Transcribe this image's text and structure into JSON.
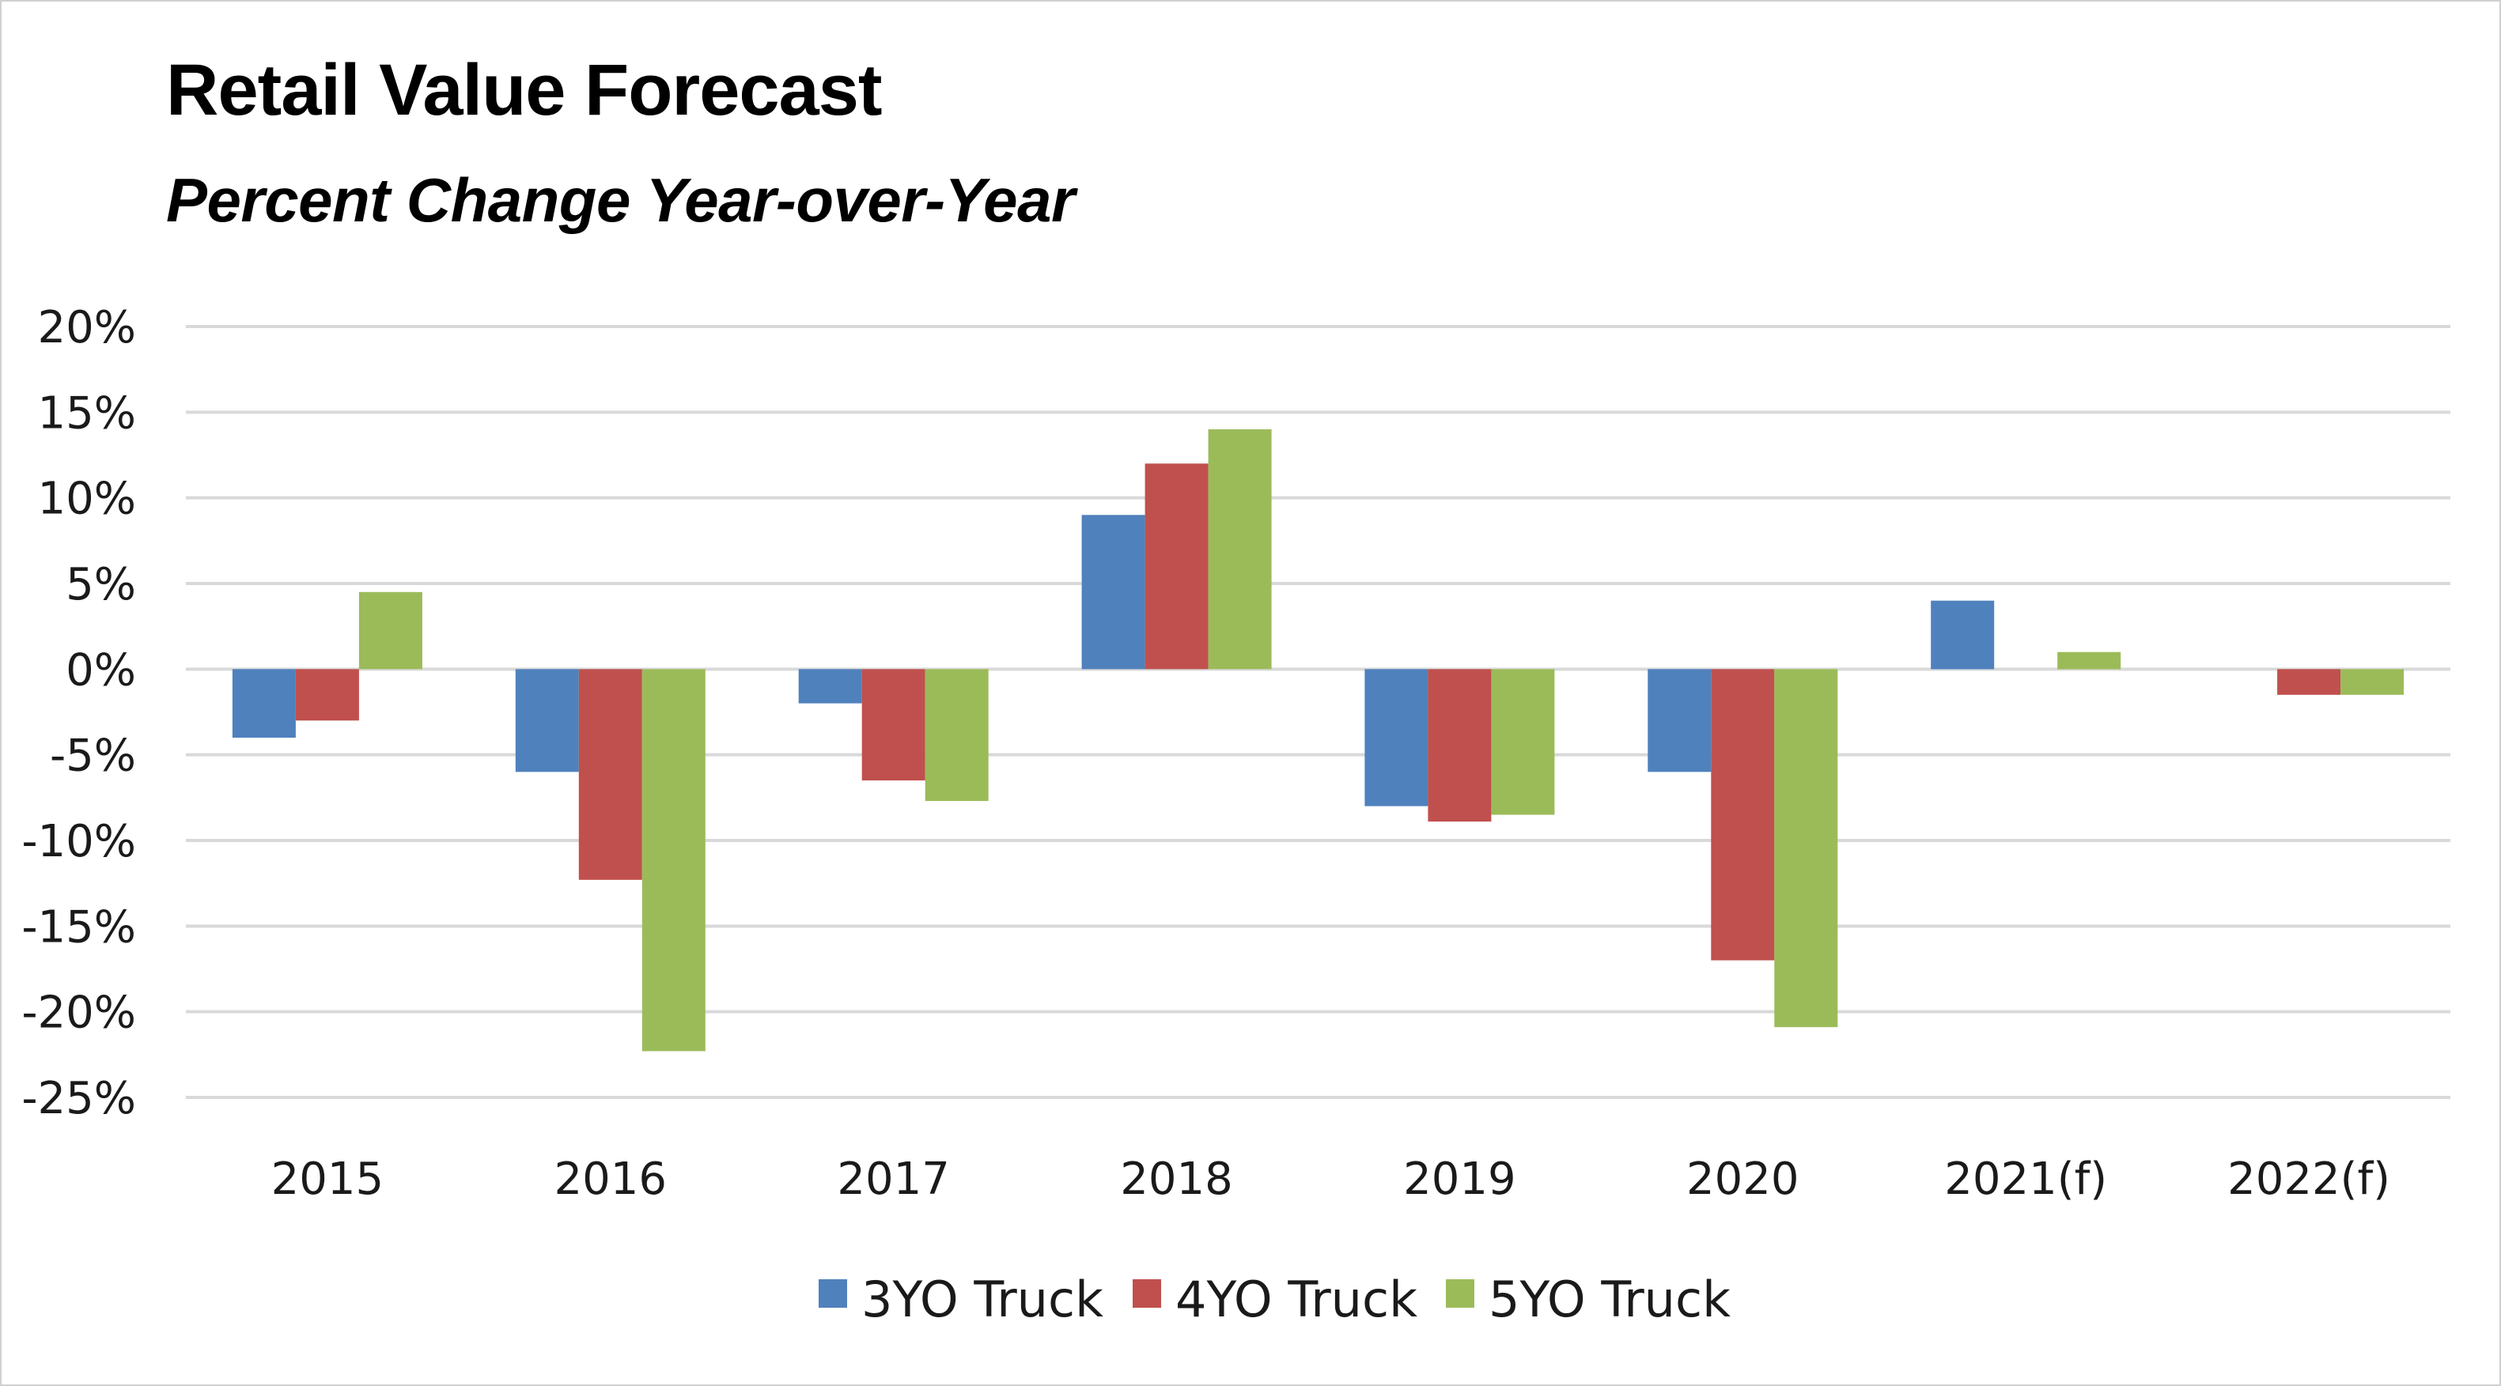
{
  "chart_data": {
    "type": "bar",
    "title": "Retail Value Forecast",
    "subtitle": "Percent Change Year-over-Year",
    "categories": [
      "2015",
      "2016",
      "2017",
      "2018",
      "2019",
      "2020",
      "2021(f)",
      "2022(f)"
    ],
    "series": [
      {
        "name": "3YO Truck",
        "color": "#4f81bd",
        "values": [
          -4.0,
          -6.0,
          -2.0,
          9.0,
          -8.0,
          -6.0,
          4.0,
          0
        ]
      },
      {
        "name": "4YO Truck",
        "color": "#c0504d",
        "values": [
          -3.0,
          -12.3,
          -6.5,
          12.0,
          -8.9,
          -17.0,
          0,
          -1.5
        ]
      },
      {
        "name": "5YO Truck",
        "color": "#9bbb59",
        "values": [
          4.5,
          -22.3,
          -7.7,
          14.0,
          -8.5,
          -20.9,
          1.0,
          -1.5
        ]
      }
    ],
    "yticks": [
      "20%",
      "15%",
      "10%",
      "5%",
      "0%",
      "-5%",
      "-10%",
      "-15%",
      "-20%",
      "-25%"
    ],
    "ylim": [
      -25,
      20
    ],
    "grid": true,
    "legend_position": "bottom"
  }
}
